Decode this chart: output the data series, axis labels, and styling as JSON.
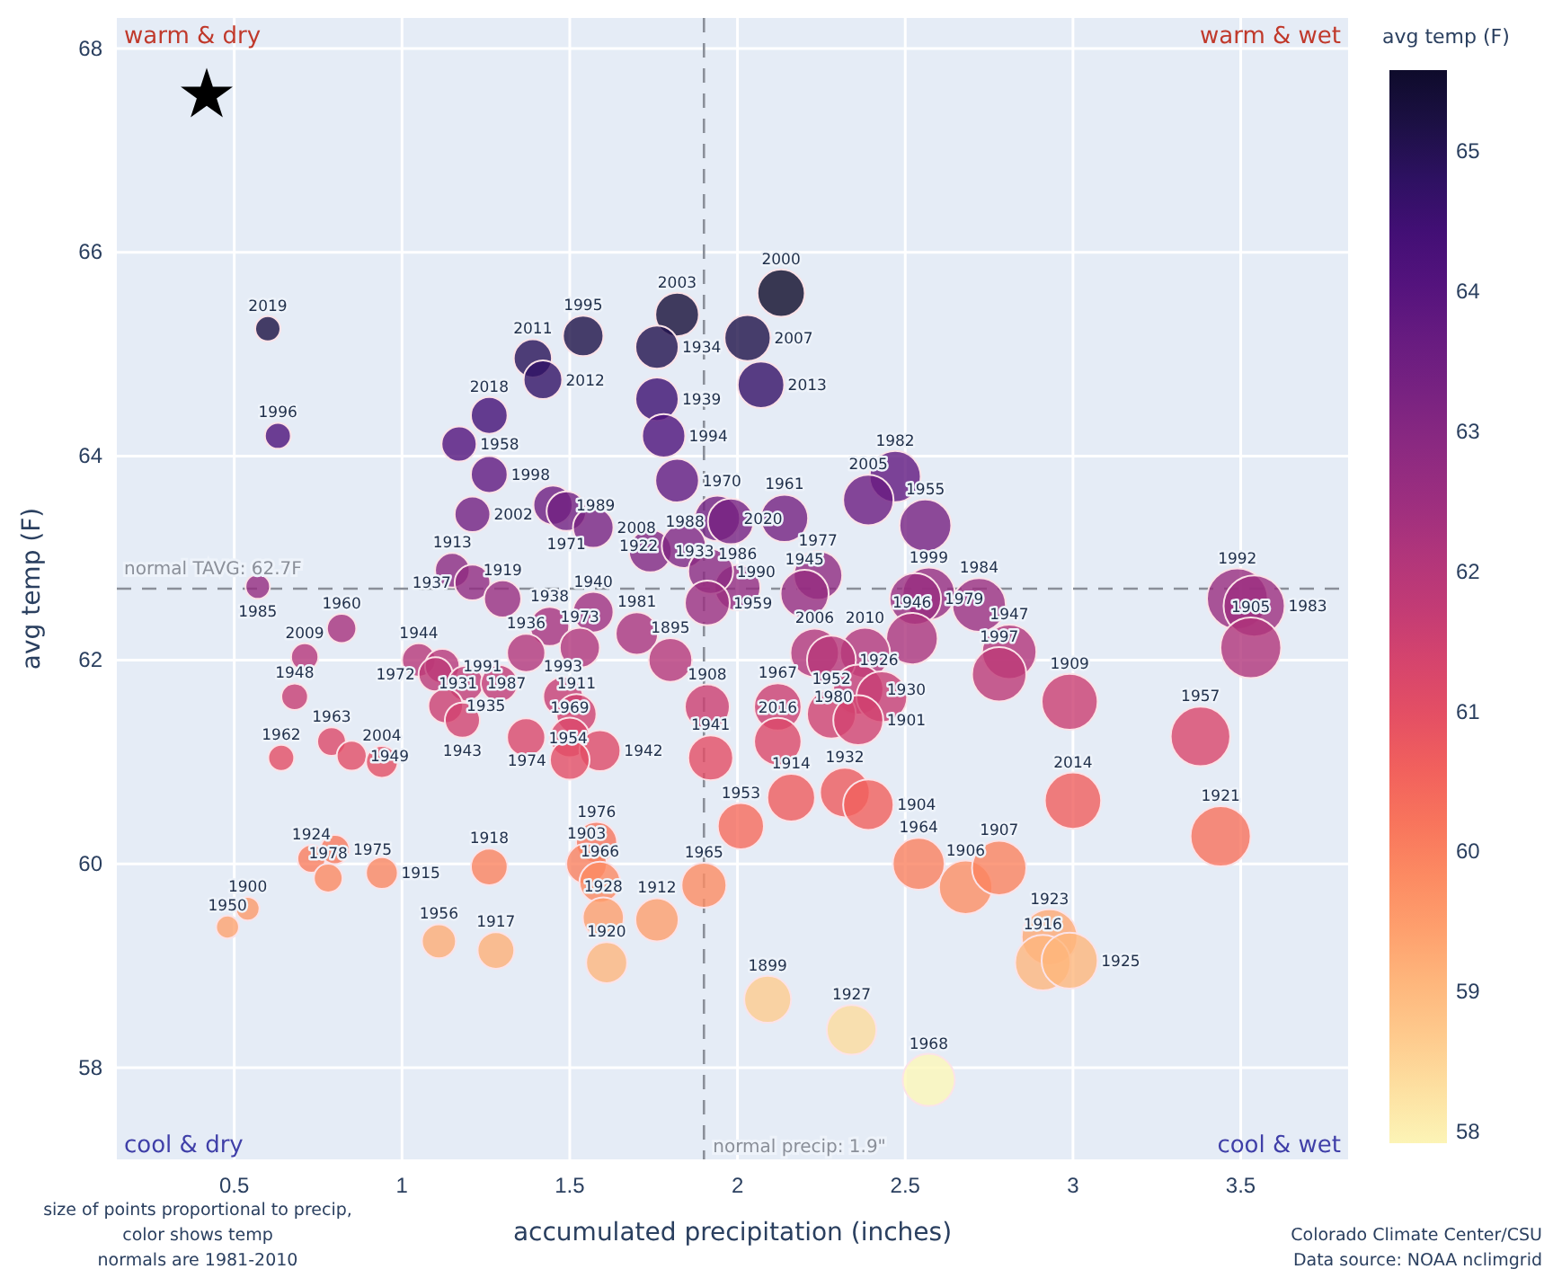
{
  "chart_data": {
    "type": "bubble",
    "xlabel": "accumulated precipitation (inches)",
    "ylabel": "avg temp (F)",
    "clabel": "avg temp (F)",
    "xlim": [
      0.15,
      3.82
    ],
    "xticks": [
      0.5,
      1,
      1.5,
      2,
      2.5,
      3,
      3.5
    ],
    "ylim": [
      57.1,
      68.3
    ],
    "yticks": [
      58,
      60,
      62,
      64,
      66,
      68
    ],
    "clim": [
      57.92,
      65.58
    ],
    "cticks": [
      58,
      59,
      60,
      61,
      62,
      63,
      64,
      65
    ],
    "grid": true,
    "marker": "circle",
    "ref_lines": [
      {
        "axis": "y",
        "value": 62.7,
        "label": "normal TAVG: 62.7F",
        "color": "#8a8f99",
        "line_style": "dashed"
      },
      {
        "axis": "x",
        "value": 1.9,
        "label": "normal precip: 1.9\"",
        "color": "#8a8f99",
        "line_style": "dashed"
      }
    ],
    "x": [
      0.6,
      0.63,
      0.57,
      0.82,
      0.71,
      0.68,
      0.64,
      0.79,
      0.85,
      0.94,
      0.73,
      0.8,
      0.78,
      0.94,
      0.54,
      0.48,
      1.11,
      1.28,
      1.26,
      1.58,
      1.55,
      1.59,
      1.6,
      1.61,
      1.76,
      1.9,
      2.09,
      2.34,
      2.57,
      2.01,
      2.16,
      1.92,
      1.91,
      2.54,
      2.68,
      2.78,
      3.0,
      3.44,
      3.38,
      2.93,
      2.91,
      2.99,
      2.32,
      2.39,
      2.13,
      2.03,
      2.07,
      1.82,
      1.76,
      1.76,
      1.78,
      1.82,
      1.94,
      1.98,
      1.74,
      1.84,
      2.0,
      1.92,
      1.91,
      2.14,
      2.24,
      2.2,
      2.47,
      2.39,
      2.56,
      2.57,
      2.53,
      2.52,
      2.23,
      2.38,
      1.7,
      1.8,
      1.57,
      1.44,
      2.12,
      2.28,
      2.36,
      2.43,
      2.28,
      2.36,
      2.12,
      1.54,
      1.39,
      1.42,
      1.26,
      1.17,
      1.26,
      1.21,
      1.45,
      1.49,
      1.57,
      1.15,
      1.21,
      1.3,
      1.53,
      1.37,
      1.05,
      1.12,
      1.1,
      1.19,
      1.29,
      1.13,
      1.18,
      1.37,
      1.48,
      1.52,
      1.5,
      1.59,
      1.5,
      2.72,
      2.81,
      2.78,
      2.99,
      3.49,
      3.54,
      3.53
    ],
    "values": [
      65.25,
      64.2,
      62.72,
      62.31,
      62.03,
      61.64,
      61.04,
      61.2,
      61.06,
      61.0,
      60.05,
      60.14,
      59.86,
      59.91,
      59.56,
      59.38,
      59.24,
      59.15,
      59.97,
      60.21,
      60.0,
      59.82,
      59.47,
      59.03,
      59.45,
      59.79,
      58.67,
      58.37,
      57.88,
      60.37,
      60.65,
      61.04,
      61.54,
      60.0,
      59.77,
      59.96,
      60.62,
      60.27,
      61.25,
      59.28,
      59.03,
      59.05,
      60.7,
      60.58,
      65.6,
      65.16,
      64.7,
      65.39,
      65.07,
      64.56,
      64.2,
      63.76,
      63.39,
      63.36,
      63.07,
      63.12,
      62.71,
      62.87,
      62.56,
      63.39,
      62.83,
      62.65,
      63.8,
      63.57,
      63.32,
      62.65,
      62.6,
      62.21,
      62.07,
      62.07,
      62.26,
      62.0,
      62.47,
      62.33,
      61.54,
      62.0,
      61.71,
      61.64,
      61.47,
      61.41,
      61.2,
      65.18,
      64.96,
      64.75,
      64.4,
      64.12,
      63.82,
      63.43,
      63.52,
      63.46,
      63.3,
      62.88,
      62.76,
      62.6,
      62.12,
      62.07,
      62.0,
      61.94,
      61.86,
      61.77,
      61.77,
      61.55,
      61.41,
      61.24,
      61.64,
      61.47,
      61.24,
      61.11,
      61.02,
      62.54,
      62.08,
      61.86,
      61.59,
      62.6,
      62.53,
      62.12
    ],
    "cvalues": [
      65.25,
      64.2,
      62.72,
      62.31,
      62.03,
      61.64,
      61.04,
      61.2,
      61.06,
      61.0,
      60.05,
      60.14,
      59.86,
      59.91,
      59.56,
      59.38,
      59.24,
      59.15,
      59.97,
      60.21,
      60.0,
      59.82,
      59.47,
      59.03,
      59.45,
      59.79,
      58.67,
      58.37,
      57.88,
      60.37,
      60.65,
      61.04,
      61.54,
      60.0,
      59.77,
      59.96,
      60.62,
      60.27,
      61.25,
      59.28,
      59.03,
      59.05,
      60.7,
      60.58,
      65.6,
      65.16,
      64.7,
      65.39,
      65.07,
      64.56,
      64.2,
      63.76,
      63.39,
      63.36,
      63.07,
      63.12,
      62.71,
      62.87,
      62.56,
      63.39,
      62.83,
      62.65,
      63.8,
      63.57,
      63.32,
      62.65,
      62.6,
      62.21,
      62.07,
      62.07,
      62.26,
      62.0,
      62.47,
      62.33,
      61.54,
      62.0,
      61.71,
      61.64,
      61.47,
      61.41,
      61.2,
      65.18,
      64.96,
      64.75,
      64.4,
      64.12,
      63.82,
      63.43,
      63.52,
      63.46,
      63.3,
      62.88,
      62.76,
      62.6,
      62.12,
      62.07,
      62.0,
      61.94,
      61.86,
      61.77,
      61.77,
      61.55,
      61.41,
      61.24,
      61.64,
      61.47,
      61.24,
      61.11,
      61.02,
      62.54,
      62.08,
      61.86,
      61.59,
      62.6,
      62.53,
      62.12
    ],
    "sizes": [
      0.17,
      0.18,
      0.16,
      0.23,
      0.2,
      0.19,
      0.18,
      0.22,
      0.24,
      0.27,
      0.21,
      0.23,
      0.22,
      0.27,
      0.15,
      0.14,
      0.31,
      0.36,
      0.36,
      0.45,
      0.44,
      0.45,
      0.45,
      0.45,
      0.5,
      0.54,
      0.59,
      0.66,
      0.73,
      0.57,
      0.61,
      0.54,
      0.54,
      0.72,
      0.76,
      0.79,
      0.85,
      0.97,
      0.95,
      0.83,
      0.82,
      0.84,
      0.66,
      0.68,
      0.6,
      0.57,
      0.58,
      0.51,
      0.5,
      0.5,
      0.5,
      0.51,
      0.55,
      0.56,
      0.49,
      0.52,
      0.56,
      0.54,
      0.54,
      0.6,
      0.63,
      0.62,
      0.7,
      0.68,
      0.72,
      0.73,
      0.71,
      0.71,
      0.63,
      0.67,
      0.48,
      0.51,
      0.44,
      0.41,
      0.6,
      0.64,
      0.67,
      0.69,
      0.64,
      0.67,
      0.6,
      0.44,
      0.39,
      0.4,
      0.36,
      0.33,
      0.36,
      0.34,
      0.41,
      0.42,
      0.44,
      0.32,
      0.34,
      0.37,
      0.43,
      0.39,
      0.3,
      0.32,
      0.31,
      0.34,
      0.36,
      0.32,
      0.33,
      0.39,
      0.42,
      0.43,
      0.42,
      0.45,
      0.42,
      0.77,
      0.79,
      0.79,
      0.84,
      0.99,
      1.0,
      0.99
    ],
    "annotations": [
      "warm & dry",
      "warm & wet",
      "cool & dry",
      "cool & wet",
      "size of points proportional to precip,",
      "color shows temp",
      "normals are 1981-2010",
      "Colorado Climate Center/CSU",
      "Data source: NOAA nclimgrid",
      {
        "text": "2019",
        "x": 0.6,
        "y": 65.25
      },
      {
        "text": "1996",
        "x": 0.63,
        "y": 64.2
      },
      {
        "text": "1985",
        "x": 0.57,
        "y": 62.72
      },
      {
        "text": "1960",
        "x": 0.82,
        "y": 62.31
      },
      {
        "text": "2009",
        "x": 0.71,
        "y": 62.03
      },
      {
        "text": "1948",
        "x": 0.68,
        "y": 61.64
      },
      {
        "text": "1962",
        "x": 0.64,
        "y": 61.04
      },
      {
        "text": "1963",
        "x": 0.79,
        "y": 61.2
      },
      {
        "text": "1949",
        "x": 0.85,
        "y": 61.06
      },
      {
        "text": "2004",
        "x": 0.94,
        "y": 61.0
      },
      {
        "text": "1924",
        "x": 0.73,
        "y": 60.05
      },
      {
        "text": "1975",
        "x": 0.8,
        "y": 60.14
      },
      {
        "text": "1978",
        "x": 0.78,
        "y": 59.86
      },
      {
        "text": "1915",
        "x": 0.94,
        "y": 59.91
      },
      {
        "text": "1900",
        "x": 0.54,
        "y": 59.56
      },
      {
        "text": "1950",
        "x": 0.48,
        "y": 59.38
      },
      {
        "text": "1956",
        "x": 1.11,
        "y": 59.24
      },
      {
        "text": "1917",
        "x": 1.28,
        "y": 59.15
      },
      {
        "text": "1918",
        "x": 1.26,
        "y": 59.97
      },
      {
        "text": "1976",
        "x": 1.58,
        "y": 60.21
      },
      {
        "text": "1903",
        "x": 1.55,
        "y": 60.0
      },
      {
        "text": "1966",
        "x": 1.59,
        "y": 59.82
      },
      {
        "text": "1928",
        "x": 1.6,
        "y": 59.47
      },
      {
        "text": "1920",
        "x": 1.61,
        "y": 59.03
      },
      {
        "text": "1912",
        "x": 1.76,
        "y": 59.45
      },
      {
        "text": "1965",
        "x": 1.9,
        "y": 59.79
      },
      {
        "text": "1899",
        "x": 2.09,
        "y": 58.67
      },
      {
        "text": "1927",
        "x": 2.34,
        "y": 58.37
      },
      {
        "text": "1968",
        "x": 2.57,
        "y": 57.88
      },
      {
        "text": "1953",
        "x": 2.01,
        "y": 60.37
      },
      {
        "text": "1914",
        "x": 2.16,
        "y": 60.65
      },
      {
        "text": "1941",
        "x": 1.92,
        "y": 61.04
      },
      {
        "text": "1908",
        "x": 1.91,
        "y": 61.54
      },
      {
        "text": "1964",
        "x": 2.54,
        "y": 60.0
      },
      {
        "text": "1906",
        "x": 2.68,
        "y": 59.77
      },
      {
        "text": "1907",
        "x": 2.78,
        "y": 59.96
      },
      {
        "text": "2014",
        "x": 3.0,
        "y": 60.62
      },
      {
        "text": "1921",
        "x": 3.44,
        "y": 60.27
      },
      {
        "text": "1957",
        "x": 3.38,
        "y": 61.25
      },
      {
        "text": "1923",
        "x": 2.93,
        "y": 59.28
      },
      {
        "text": "1916",
        "x": 2.91,
        "y": 59.03
      },
      {
        "text": "1925",
        "x": 2.99,
        "y": 59.05
      },
      {
        "text": "1932",
        "x": 2.32,
        "y": 60.7
      },
      {
        "text": "1904",
        "x": 2.39,
        "y": 60.58
      },
      {
        "text": "2000",
        "x": 2.13,
        "y": 65.6
      },
      {
        "text": "2007",
        "x": 2.03,
        "y": 65.16
      },
      {
        "text": "2013",
        "x": 2.07,
        "y": 64.7
      },
      {
        "text": "2003",
        "x": 1.82,
        "y": 65.39
      },
      {
        "text": "1934",
        "x": 1.76,
        "y": 65.07
      },
      {
        "text": "1939",
        "x": 1.76,
        "y": 64.56
      },
      {
        "text": "1994",
        "x": 1.78,
        "y": 64.2
      },
      {
        "text": "1970",
        "x": 1.82,
        "y": 63.76
      },
      {
        "text": "2020",
        "x": 1.94,
        "y": 63.39
      },
      {
        "text": "1988",
        "x": 1.98,
        "y": 63.36
      },
      {
        "text": "1933",
        "x": 1.74,
        "y": 63.07
      },
      {
        "text": "1922",
        "x": 1.84,
        "y": 63.12
      },
      {
        "text": "1986",
        "x": 2.0,
        "y": 62.71
      },
      {
        "text": "1990",
        "x": 1.92,
        "y": 62.87
      },
      {
        "text": "1959",
        "x": 1.91,
        "y": 62.56
      },
      {
        "text": "1961",
        "x": 2.14,
        "y": 63.39
      },
      {
        "text": "1977",
        "x": 2.24,
        "y": 62.83
      },
      {
        "text": "1945",
        "x": 2.2,
        "y": 62.65
      },
      {
        "text": "1982",
        "x": 2.47,
        "y": 63.8
      },
      {
        "text": "2005",
        "x": 2.39,
        "y": 63.57
      },
      {
        "text": "1955",
        "x": 2.56,
        "y": 63.32
      },
      {
        "text": "1999",
        "x": 2.57,
        "y": 62.65
      },
      {
        "text": "1979",
        "x": 2.53,
        "y": 62.6
      },
      {
        "text": "1946",
        "x": 2.52,
        "y": 62.21
      },
      {
        "text": "2006",
        "x": 2.23,
        "y": 62.07
      },
      {
        "text": "2010",
        "x": 2.38,
        "y": 62.07
      },
      {
        "text": "1981",
        "x": 1.7,
        "y": 62.26
      },
      {
        "text": "1895",
        "x": 1.8,
        "y": 62.0
      },
      {
        "text": "1940",
        "x": 1.57,
        "y": 62.47
      },
      {
        "text": "1938",
        "x": 1.44,
        "y": 62.33
      },
      {
        "text": "1967",
        "x": 2.12,
        "y": 61.54
      },
      {
        "text": "1926",
        "x": 2.28,
        "y": 62.0
      },
      {
        "text": "1930",
        "x": 2.36,
        "y": 61.71
      },
      {
        "text": "1980",
        "x": 2.43,
        "y": 61.64
      },
      {
        "text": "1952",
        "x": 2.28,
        "y": 61.47
      },
      {
        "text": "1901",
        "x": 2.36,
        "y": 61.41
      },
      {
        "text": "2016",
        "x": 2.12,
        "y": 61.2
      },
      {
        "text": "1995",
        "x": 1.54,
        "y": 65.18
      },
      {
        "text": "2011",
        "x": 1.39,
        "y": 64.96
      },
      {
        "text": "2012",
        "x": 1.42,
        "y": 64.75
      },
      {
        "text": "2018",
        "x": 1.26,
        "y": 64.4
      },
      {
        "text": "1958",
        "x": 1.17,
        "y": 64.12
      },
      {
        "text": "1998",
        "x": 1.26,
        "y": 63.82
      },
      {
        "text": "2002",
        "x": 1.21,
        "y": 63.43
      },
      {
        "text": "1989",
        "x": 1.45,
        "y": 63.52
      },
      {
        "text": "1971",
        "x": 1.49,
        "y": 63.46
      },
      {
        "text": "2008",
        "x": 1.57,
        "y": 63.3
      },
      {
        "text": "1913",
        "x": 1.15,
        "y": 62.88
      },
      {
        "text": "1937",
        "x": 1.21,
        "y": 62.76
      },
      {
        "text": "1919",
        "x": 1.3,
        "y": 62.6
      },
      {
        "text": "1973",
        "x": 1.53,
        "y": 62.12
      },
      {
        "text": "1936",
        "x": 1.37,
        "y": 62.07
      },
      {
        "text": "1944",
        "x": 1.05,
        "y": 62.0
      },
      {
        "text": "1991",
        "x": 1.12,
        "y": 61.94
      },
      {
        "text": "1972",
        "x": 1.1,
        "y": 61.86
      },
      {
        "text": "1987",
        "x": 1.19,
        "y": 61.77
      },
      {
        "text": "1931",
        "x": 1.29,
        "y": 61.77
      },
      {
        "text": "1935",
        "x": 1.13,
        "y": 61.55
      },
      {
        "text": "1943",
        "x": 1.18,
        "y": 61.41
      },
      {
        "text": "1954",
        "x": 1.37,
        "y": 61.24
      },
      {
        "text": "1993",
        "x": 1.48,
        "y": 61.64
      },
      {
        "text": "1911",
        "x": 1.52,
        "y": 61.47
      },
      {
        "text": "1969",
        "x": 1.5,
        "y": 61.24
      },
      {
        "text": "1942",
        "x": 1.59,
        "y": 61.11
      },
      {
        "text": "1974",
        "x": 1.5,
        "y": 61.02
      },
      {
        "text": "1984",
        "x": 2.72,
        "y": 62.54
      },
      {
        "text": "1947",
        "x": 2.81,
        "y": 62.08
      },
      {
        "text": "1997",
        "x": 2.78,
        "y": 61.86
      },
      {
        "text": "1909",
        "x": 2.99,
        "y": 61.59
      },
      {
        "text": "1992",
        "x": 3.49,
        "y": 62.6
      },
      {
        "text": "1983",
        "x": 3.54,
        "y": 62.53
      },
      {
        "text": "1905",
        "x": 3.53,
        "y": 62.12
      }
    ]
  }
}
